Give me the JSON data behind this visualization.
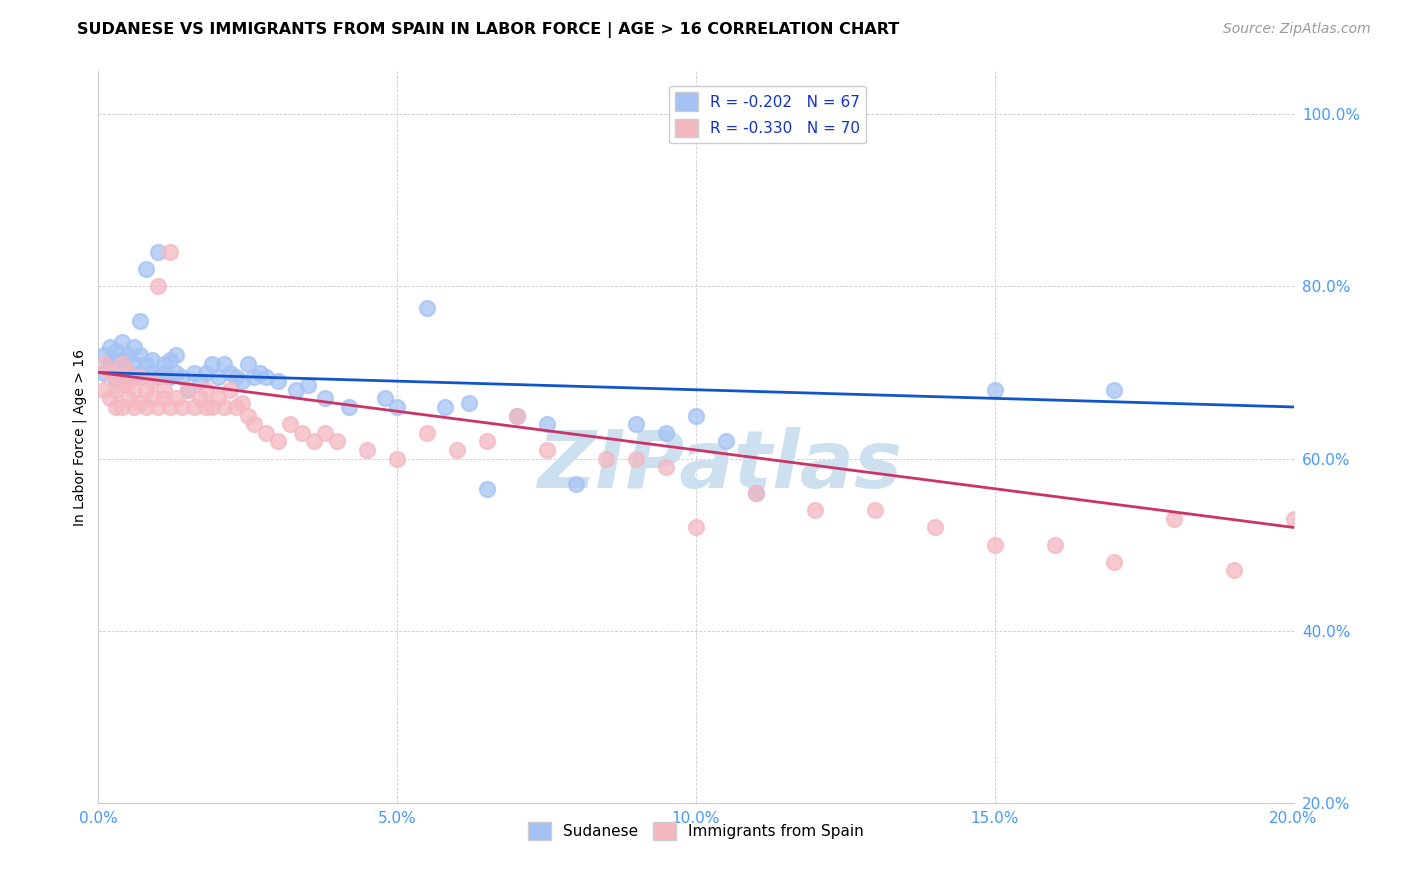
{
  "title": "SUDANESE VS IMMIGRANTS FROM SPAIN IN LABOR FORCE | AGE > 16 CORRELATION CHART",
  "source": "Source: ZipAtlas.com",
  "ylabel": "In Labor Force | Age > 16",
  "xlim": [
    0.0,
    0.2
  ],
  "ylim": [
    0.2,
    1.05
  ],
  "xlabel_vals": [
    0.0,
    0.05,
    0.1,
    0.15,
    0.2
  ],
  "xlabel_ticks": [
    "0.0%",
    "5.0%",
    "10.0%",
    "15.0%",
    "20.0%"
  ],
  "ylabel_vals": [
    0.2,
    0.4,
    0.6,
    0.8,
    1.0
  ],
  "ylabel_ticks": [
    "20.0%",
    "40.0%",
    "60.0%",
    "80.0%",
    "100.0%"
  ],
  "legend_label1": "R = -0.202   N = 67",
  "legend_label2": "R = -0.330   N = 70",
  "legend_bottom_label1": "Sudanese",
  "legend_bottom_label2": "Immigrants from Spain",
  "blue_color": "#a4c2f4",
  "pink_color": "#f4b8c1",
  "trend_blue": "#1155cc",
  "trend_pink": "#cc3366",
  "watermark_color": "#cce0f0",
  "background_color": "#ffffff",
  "grid_color": "#cccccc",
  "tick_color": "#4499ff",
  "title_fontsize": 11.5,
  "source_fontsize": 10,
  "tick_fontsize": 11,
  "ylabel_fontsize": 10,
  "legend_fontsize": 11,
  "blue_x": [
    0.001,
    0.001,
    0.002,
    0.002,
    0.003,
    0.003,
    0.003,
    0.004,
    0.004,
    0.004,
    0.005,
    0.005,
    0.005,
    0.006,
    0.006,
    0.006,
    0.007,
    0.007,
    0.007,
    0.008,
    0.008,
    0.009,
    0.009,
    0.01,
    0.01,
    0.011,
    0.011,
    0.012,
    0.012,
    0.013,
    0.013,
    0.014,
    0.015,
    0.016,
    0.017,
    0.018,
    0.019,
    0.02,
    0.021,
    0.022,
    0.023,
    0.024,
    0.025,
    0.026,
    0.027,
    0.028,
    0.03,
    0.033,
    0.035,
    0.038,
    0.042,
    0.048,
    0.05,
    0.055,
    0.058,
    0.062,
    0.065,
    0.07,
    0.075,
    0.08,
    0.09,
    0.095,
    0.1,
    0.105,
    0.11,
    0.15,
    0.17
  ],
  "blue_y": [
    0.7,
    0.72,
    0.71,
    0.73,
    0.69,
    0.715,
    0.725,
    0.705,
    0.715,
    0.735,
    0.695,
    0.72,
    0.7,
    0.71,
    0.73,
    0.695,
    0.7,
    0.72,
    0.76,
    0.71,
    0.82,
    0.7,
    0.715,
    0.695,
    0.84,
    0.71,
    0.7,
    0.695,
    0.715,
    0.72,
    0.7,
    0.695,
    0.68,
    0.7,
    0.69,
    0.7,
    0.71,
    0.695,
    0.71,
    0.7,
    0.695,
    0.69,
    0.71,
    0.695,
    0.7,
    0.695,
    0.69,
    0.68,
    0.685,
    0.67,
    0.66,
    0.67,
    0.66,
    0.775,
    0.66,
    0.665,
    0.565,
    0.65,
    0.64,
    0.57,
    0.64,
    0.63,
    0.65,
    0.62,
    0.56,
    0.68,
    0.68
  ],
  "pink_x": [
    0.001,
    0.001,
    0.002,
    0.002,
    0.003,
    0.003,
    0.003,
    0.004,
    0.004,
    0.004,
    0.005,
    0.005,
    0.005,
    0.006,
    0.006,
    0.007,
    0.007,
    0.008,
    0.008,
    0.009,
    0.009,
    0.01,
    0.01,
    0.011,
    0.011,
    0.012,
    0.012,
    0.013,
    0.014,
    0.015,
    0.016,
    0.017,
    0.018,
    0.018,
    0.019,
    0.02,
    0.021,
    0.022,
    0.023,
    0.024,
    0.025,
    0.026,
    0.028,
    0.03,
    0.032,
    0.034,
    0.036,
    0.038,
    0.04,
    0.045,
    0.05,
    0.055,
    0.06,
    0.065,
    0.07,
    0.075,
    0.085,
    0.09,
    0.095,
    0.1,
    0.11,
    0.12,
    0.13,
    0.14,
    0.15,
    0.16,
    0.17,
    0.18,
    0.19,
    0.2
  ],
  "pink_y": [
    0.71,
    0.68,
    0.7,
    0.67,
    0.68,
    0.66,
    0.695,
    0.66,
    0.71,
    0.685,
    0.69,
    0.67,
    0.7,
    0.66,
    0.68,
    0.665,
    0.695,
    0.66,
    0.68,
    0.67,
    0.69,
    0.66,
    0.8,
    0.67,
    0.68,
    0.66,
    0.84,
    0.67,
    0.66,
    0.68,
    0.66,
    0.67,
    0.66,
    0.68,
    0.66,
    0.67,
    0.66,
    0.68,
    0.66,
    0.665,
    0.65,
    0.64,
    0.63,
    0.62,
    0.64,
    0.63,
    0.62,
    0.63,
    0.62,
    0.61,
    0.6,
    0.63,
    0.61,
    0.62,
    0.65,
    0.61,
    0.6,
    0.6,
    0.59,
    0.52,
    0.56,
    0.54,
    0.54,
    0.52,
    0.5,
    0.5,
    0.48,
    0.53,
    0.47,
    0.53
  ],
  "blue_trend_x": [
    0.0,
    0.2
  ],
  "blue_trend_y": [
    0.7,
    0.66
  ],
  "pink_trend_x": [
    0.0,
    0.2
  ],
  "pink_trend_y": [
    0.7,
    0.52
  ]
}
